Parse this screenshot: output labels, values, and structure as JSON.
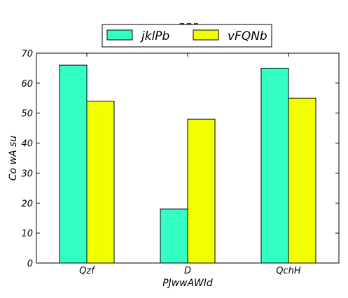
{
  "chart_data": {
    "type": "bar",
    "title": "ppr",
    "xlabel": "PJwwAWId",
    "ylabel": "Co wA su",
    "categories": [
      "Qzf",
      "D",
      "QchH"
    ],
    "series": [
      {
        "name": "jklPb",
        "values": [
          66,
          18,
          65
        ],
        "color": "#33ffc4"
      },
      {
        "name": "vFQNb",
        "values": [
          54,
          48,
          55
        ],
        "color": "#f2ff00"
      }
    ],
    "ylim": [
      0,
      70
    ],
    "yticks": [
      0,
      10,
      20,
      30,
      40,
      50,
      60,
      70
    ],
    "grid": false,
    "legend_position": "top-center"
  }
}
